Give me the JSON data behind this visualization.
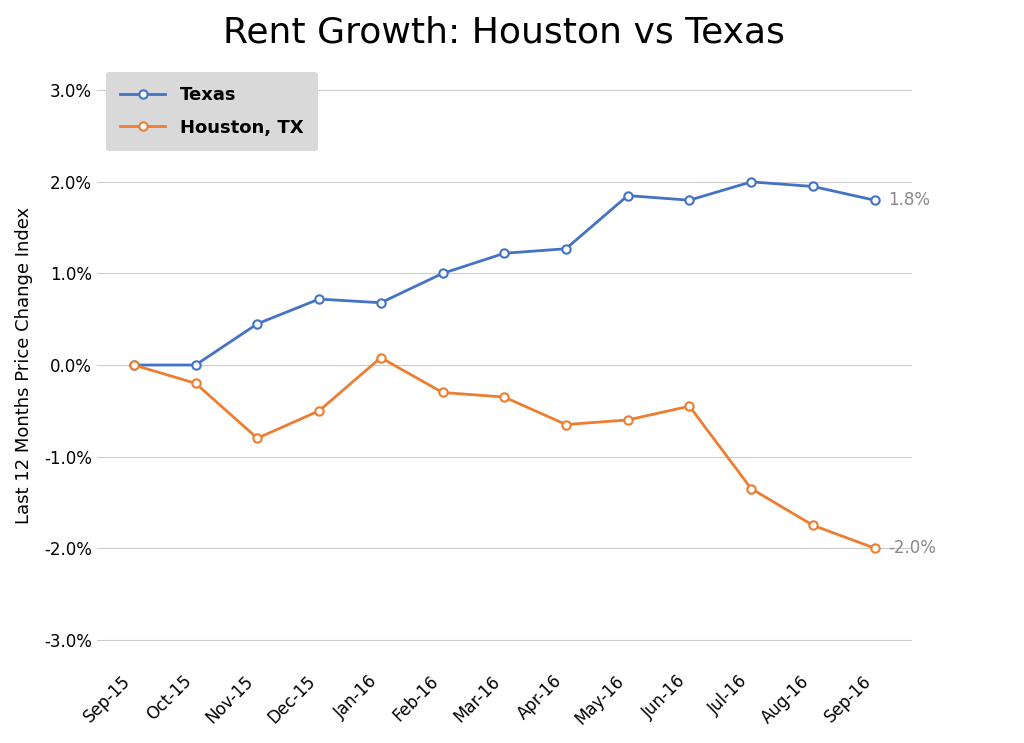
{
  "title": "Rent Growth: Houston vs Texas",
  "ylabel": "Last 12 Months Price Change Index",
  "categories": [
    "Sep-15",
    "Oct-15",
    "Nov-15",
    "Dec-15",
    "Jan-16",
    "Feb-16",
    "Mar-16",
    "Apr-16",
    "May-16",
    "Jun-16",
    "Jul-16",
    "Aug-16",
    "Sep-16"
  ],
  "texas": [
    0.0,
    0.0,
    0.45,
    0.72,
    0.68,
    1.0,
    1.22,
    1.27,
    1.85,
    1.8,
    2.0,
    1.95,
    1.8
  ],
  "houston": [
    0.0,
    -0.2,
    -0.8,
    -0.5,
    0.08,
    -0.3,
    -0.35,
    -0.65,
    -0.6,
    -0.45,
    -1.35,
    -1.75,
    -2.0
  ],
  "texas_color": "#4472C4",
  "houston_color": "#ED7D31",
  "texas_label": "Texas",
  "houston_label": "Houston, TX",
  "texas_end_label": "1.8%",
  "houston_end_label": "-2.0%",
  "ylim": [
    -3.3,
    3.3
  ],
  "yticks": [
    -3.0,
    -2.0,
    -1.0,
    0.0,
    1.0,
    2.0,
    3.0
  ],
  "background_color": "#ffffff",
  "title_fontsize": 26,
  "axis_label_fontsize": 13,
  "tick_fontsize": 12,
  "legend_fontsize": 13,
  "grid_color": "#cccccc",
  "legend_bg": "#d9d9d9"
}
